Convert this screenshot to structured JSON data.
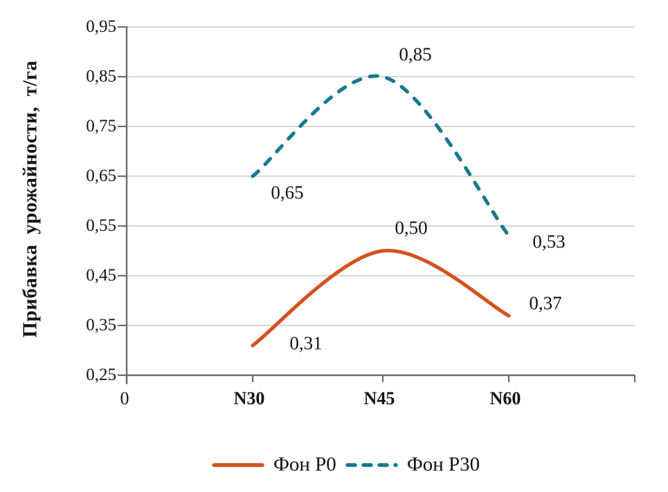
{
  "chart_data": {
    "type": "line",
    "title": "",
    "xlabel": "",
    "ylabel": "Прибавка урожайности, т/га",
    "x_origin_label": "0",
    "categories": [
      "N30",
      "N45",
      "N60"
    ],
    "series": [
      {
        "name": "Фон Р0",
        "color": "#d4511e",
        "line_style": "solid",
        "values": [
          0.31,
          0.5,
          0.37
        ],
        "point_labels": [
          "0,31",
          "0,50",
          "0,37"
        ]
      },
      {
        "name": "Фон Р30",
        "color": "#16798e",
        "line_style": "dashed",
        "values": [
          0.65,
          0.85,
          0.53
        ],
        "point_labels": [
          "0,65",
          "0,85",
          "0,53"
        ]
      }
    ],
    "y_ticks": [
      {
        "label": "0,95",
        "value": 0.95
      },
      {
        "label": "0,85",
        "value": 0.85
      },
      {
        "label": "0,75",
        "value": 0.75
      },
      {
        "label": "0,65",
        "value": 0.65
      },
      {
        "label": "0,55",
        "value": 0.55
      },
      {
        "label": "0,45",
        "value": 0.45
      },
      {
        "label": "0,35",
        "value": 0.35
      },
      {
        "label": "0,25",
        "value": 0.25
      }
    ],
    "ylim": [
      0.25,
      0.95
    ],
    "grid": true,
    "legend_position": "bottom"
  },
  "colors": {
    "background": "#ffffff",
    "axis": "#6b6b6b",
    "gridline": "#c8c8c8",
    "text": "#141414",
    "series_fon_p0": "#d4511e",
    "series_fon_p30": "#16798e"
  }
}
